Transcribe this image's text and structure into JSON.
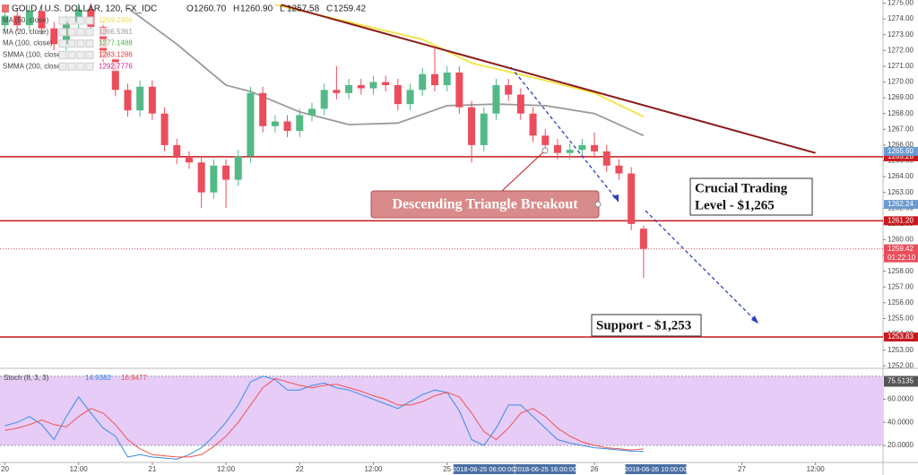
{
  "chart_data": [
    {
      "type": "candlestick",
      "title": "GOLD / U.S. DOLLAR, 120, FX_IDC",
      "ohlc_labels": [
        {
          "key": "O",
          "value": "1260.70"
        },
        {
          "key": "H",
          "value": "1260.90"
        },
        {
          "key": "L",
          "value": "1257.58"
        },
        {
          "key": "C",
          "value": "1259.42"
        }
      ],
      "up_color": "#53b987",
      "down_color": "#eb4d5c",
      "open": [
        1273.6,
        1274.2,
        1273.6,
        1274.5,
        1273.4,
        1272.4,
        1273.8,
        1274.6,
        1273.5,
        1271.5,
        1269.5,
        1268.2,
        1269.7,
        1268.0,
        1266.0,
        1265.2,
        1264.9,
        1263.0,
        1264.7,
        1263.8,
        1265.3,
        1269.3,
        1267.2,
        1267.5,
        1266.9,
        1267.9,
        1268.3,
        1269.5,
        1269.3,
        1269.8,
        1269.6,
        1270.0,
        1269.8,
        1268.6,
        1269.5,
        1270.5,
        1269.8,
        1270.6,
        1268.4,
        1266.0,
        1268.0,
        1269.8,
        1269.2,
        1268.0,
        1266.6,
        1266.0,
        1265.5,
        1265.7,
        1266.0,
        1265.6,
        1264.7,
        1264.2,
        1260.7
      ],
      "high": [
        1274.6,
        1274.6,
        1274.9,
        1274.9,
        1273.8,
        1274.2,
        1275.0,
        1275.0,
        1273.9,
        1271.9,
        1269.9,
        1270.1,
        1270.1,
        1268.4,
        1266.4,
        1265.6,
        1265.3,
        1265.1,
        1265.1,
        1265.7,
        1269.7,
        1269.7,
        1267.9,
        1267.9,
        1268.3,
        1268.7,
        1269.9,
        1271.0,
        1270.2,
        1270.2,
        1270.4,
        1270.4,
        1270.2,
        1269.9,
        1270.9,
        1272.2,
        1271.0,
        1271.0,
        1268.8,
        1268.4,
        1270.2,
        1270.2,
        1269.6,
        1268.4,
        1267.0,
        1266.4,
        1266.1,
        1266.4,
        1266.8,
        1266.0,
        1265.1,
        1264.6,
        1260.9
      ],
      "low": [
        1273.2,
        1273.2,
        1273.2,
        1273.0,
        1272.0,
        1272.0,
        1273.4,
        1273.1,
        1271.1,
        1269.1,
        1267.8,
        1267.8,
        1267.6,
        1265.6,
        1264.8,
        1264.5,
        1262.0,
        1262.6,
        1262.0,
        1263.4,
        1264.9,
        1266.8,
        1266.8,
        1266.5,
        1266.5,
        1267.5,
        1267.9,
        1268.9,
        1268.9,
        1269.2,
        1269.2,
        1269.4,
        1268.2,
        1268.2,
        1269.1,
        1269.4,
        1269.4,
        1268.0,
        1264.9,
        1265.6,
        1267.6,
        1268.8,
        1267.6,
        1266.2,
        1265.6,
        1265.1,
        1265.1,
        1265.3,
        1265.2,
        1264.3,
        1263.8,
        1260.6,
        1257.58
      ],
      "close": [
        1274.2,
        1273.6,
        1274.5,
        1273.4,
        1272.4,
        1273.8,
        1274.6,
        1273.5,
        1271.5,
        1269.5,
        1268.2,
        1269.7,
        1268.0,
        1266.0,
        1265.2,
        1264.9,
        1263.0,
        1264.7,
        1263.8,
        1265.3,
        1269.3,
        1267.2,
        1267.5,
        1266.9,
        1267.9,
        1268.3,
        1269.5,
        1269.3,
        1269.8,
        1269.6,
        1270.0,
        1269.8,
        1268.6,
        1269.5,
        1270.5,
        1269.8,
        1270.6,
        1268.4,
        1266.0,
        1268.0,
        1269.8,
        1269.2,
        1268.0,
        1266.6,
        1266.0,
        1265.5,
        1265.7,
        1266.0,
        1265.6,
        1264.7,
        1264.2,
        1261.0,
        1259.42
      ],
      "xlim": [
        -0.4,
        71.5
      ],
      "ylim": [
        1251.9,
        1275.2
      ],
      "yticks": [
        {
          "value": 1252,
          "label": "1252.00"
        },
        {
          "value": 1253,
          "label": "1253.00"
        },
        {
          "value": 1254,
          "label": "1254.00"
        },
        {
          "value": 1255,
          "label": "1255.00"
        },
        {
          "value": 1256,
          "label": "1256.00"
        },
        {
          "value": 1257,
          "label": "1257.00"
        },
        {
          "value": 1258,
          "label": "1258.00"
        },
        {
          "value": 1259,
          "label": "1259.00"
        },
        {
          "value": 1260,
          "label": "1260.00"
        },
        {
          "value": 1261,
          "label": "1261.00"
        },
        {
          "value": 1262,
          "label": "1262.00"
        },
        {
          "value": 1263,
          "label": "1263.00"
        },
        {
          "value": 1264,
          "label": "1264.00"
        },
        {
          "value": 1265,
          "label": "1265.00"
        },
        {
          "value": 1266,
          "label": "1266.00"
        },
        {
          "value": 1267,
          "label": "1267.00"
        },
        {
          "value": 1268,
          "label": "1268.00"
        },
        {
          "value": 1269,
          "label": "1269.00"
        },
        {
          "value": 1270,
          "label": "1270.00"
        },
        {
          "value": 1271,
          "label": "1271.00"
        },
        {
          "value": 1272,
          "label": "1272.00"
        },
        {
          "value": 1273,
          "label": "1273.00"
        },
        {
          "value": 1274,
          "label": "1274.00"
        },
        {
          "value": 1275,
          "label": "1275.00"
        }
      ],
      "xticks": [
        {
          "value": 0,
          "label": "20"
        },
        {
          "value": 6,
          "label": "12:00"
        },
        {
          "value": 12,
          "label": "21"
        },
        {
          "value": 18,
          "label": "12:00"
        },
        {
          "value": 24,
          "label": "22"
        },
        {
          "value": 30,
          "label": "12:00"
        },
        {
          "value": 36,
          "label": "25"
        },
        {
          "value": 48,
          "label": "26"
        },
        {
          "value": 60,
          "label": "27"
        },
        {
          "value": 66,
          "label": "12:00"
        }
      ],
      "time_marks": [
        {
          "value": 39,
          "label": "2018-06-25 06:00:00"
        },
        {
          "value": 44,
          "label": "2018-06-25 16:00:00"
        },
        {
          "value": 53,
          "label": "2018-06-26 10:00:00"
        }
      ],
      "overlays": [
        {
          "name": "MA (50, close)",
          "value_label": "1269.2906",
          "color": "#f2e33d",
          "x": [
            22,
            28,
            34,
            38,
            44,
            48,
            52
          ],
          "values": [
            1274.9,
            1273.8,
            1272.7,
            1271.2,
            1270.1,
            1269.3,
            1267.8
          ]
        },
        {
          "name": "MA (20, close)",
          "value_label": "1266.5361",
          "color": "#9a9a9a",
          "x": [
            10,
            14,
            18,
            20,
            24,
            28,
            32,
            36,
            40,
            44,
            48,
            52
          ],
          "values": [
            1274.7,
            1272.4,
            1269.8,
            1269.4,
            1268.1,
            1267.3,
            1267.4,
            1268.5,
            1268.6,
            1268.5,
            1268.0,
            1266.6
          ]
        },
        {
          "name": "MA (100, close)",
          "value_label": "1277.1488",
          "color": "#4caf50"
        },
        {
          "name": "SMMA (100, close)",
          "value_label": "1283.1286",
          "color": "#e53935"
        },
        {
          "name": "SMMA (200, close)",
          "value_label": "1292.7776",
          "color": "#d81b9c"
        }
      ],
      "trendline": {
        "x": [
          22.5,
          66
        ],
        "values": [
          1274.9,
          1265.5
        ],
        "color": "#8b1a1a"
      },
      "levels": [
        {
          "value": 1265.26,
          "label": "1265.26",
          "color": "#c8181e"
        },
        {
          "value": 1261.2,
          "label": "1261.20",
          "color": "#c8181e"
        },
        {
          "value": 1253.83,
          "label": "1253.83",
          "color": "#c8181e"
        }
      ],
      "badges": [
        {
          "value": 1265.6,
          "label": "1265.60",
          "color": "#6a9bd1"
        },
        {
          "value": 1262.24,
          "label": "1262.24",
          "color": "#6a9bd1"
        }
      ],
      "last": {
        "value": 1259.42,
        "label": "1259.42",
        "countdown": "01:22:10",
        "color": "#eb4d5c"
      },
      "annotations": [
        {
          "text": "Descending Triangle Breakout"
        },
        {
          "lines": [
            "Crucial Trading",
            "Level - $1,265"
          ]
        },
        {
          "text": "Support - $1,253"
        }
      ]
    },
    {
      "type": "line",
      "title": "Stoch (8, 3, 3)",
      "xlim": [
        -0.4,
        71.5
      ],
      "ylim": [
        6,
        86
      ],
      "yticks": [
        {
          "value": 20,
          "label": "20.0000"
        },
        {
          "value": 40,
          "label": "40.0000"
        },
        {
          "value": 60,
          "label": "60.0000"
        }
      ],
      "band": [
        20,
        80
      ],
      "band_color": "#e6ccf7",
      "last_badge": {
        "value": 75.5135,
        "label": "75.5135"
      },
      "series": [
        {
          "value_label": "14.9382",
          "color": "#3a8ee6",
          "values": [
            37,
            40,
            45,
            38,
            25,
            45,
            62,
            48,
            35,
            28,
            10,
            12,
            10,
            9,
            8,
            12,
            18,
            28,
            40,
            55,
            75,
            80,
            77,
            68,
            68,
            72,
            74,
            70,
            68,
            64,
            60,
            56,
            52,
            58,
            64,
            68,
            66,
            50,
            25,
            20,
            35,
            55,
            55,
            45,
            35,
            25,
            22,
            20,
            18,
            17,
            16,
            15,
            14.9382
          ]
        },
        {
          "value_label": "16.9477",
          "color": "#ef5350",
          "values": [
            33,
            35,
            38,
            42,
            38,
            36,
            45,
            52,
            48,
            38,
            25,
            17,
            12,
            11,
            10,
            10,
            12,
            19,
            28,
            40,
            55,
            70,
            78,
            75,
            72,
            70,
            72,
            73,
            70,
            67,
            63,
            60,
            55,
            55,
            58,
            63,
            66,
            62,
            48,
            32,
            25,
            35,
            48,
            52,
            45,
            35,
            28,
            23,
            20,
            18,
            17,
            16,
            16.9477
          ]
        }
      ]
    }
  ]
}
